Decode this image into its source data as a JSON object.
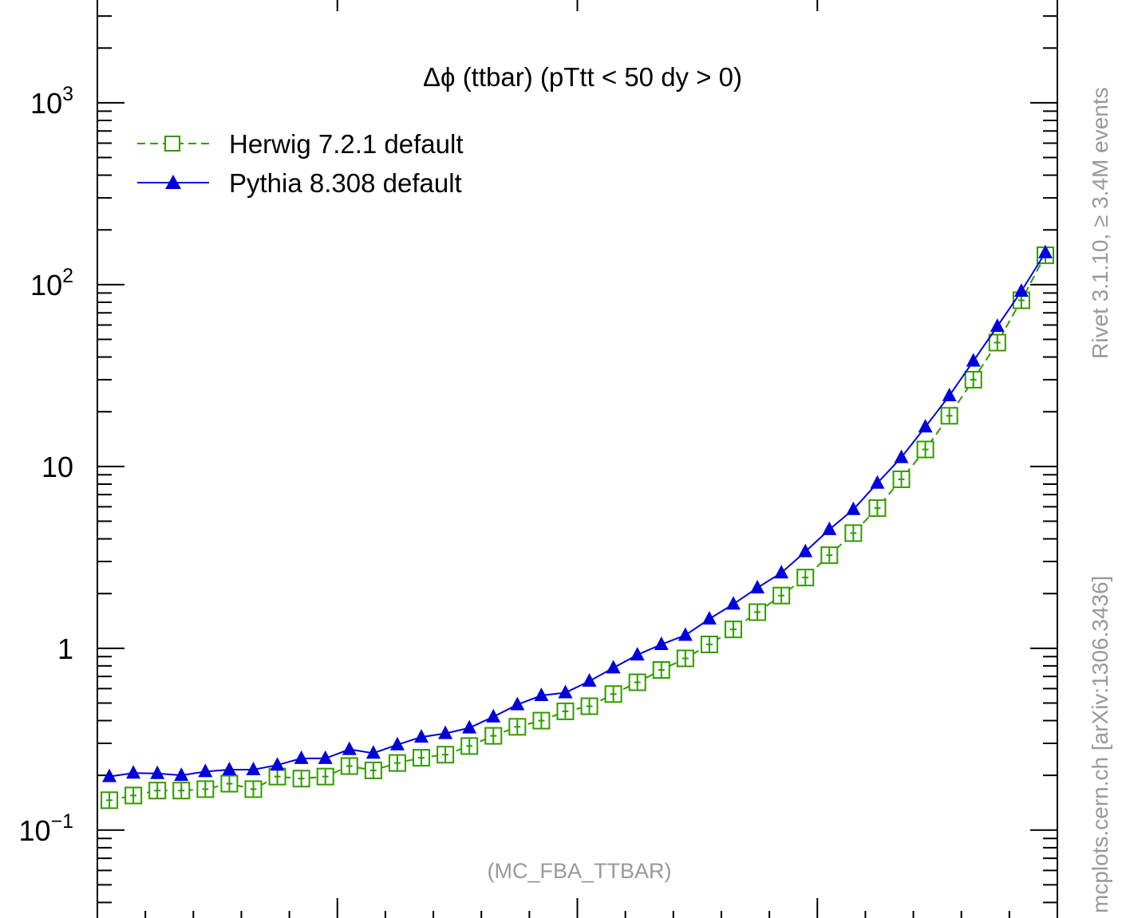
{
  "chart_data": {
    "type": "line",
    "title": "Δϕ (ttbar) (pTtt < 50 dy > 0)",
    "xlabel": "",
    "ylabel": "",
    "yscale": "log",
    "ylim": [
      0.03,
      4500
    ],
    "xlim": [
      0.0,
      1.0
    ],
    "grid": false,
    "legend_position": "top-left",
    "y_ticks": [
      {
        "value": 0.1,
        "base": "10",
        "exp": "−1"
      },
      {
        "value": 1,
        "label": "1"
      },
      {
        "value": 10,
        "label": "10"
      },
      {
        "value": 100,
        "base": "10",
        "exp": "2"
      },
      {
        "value": 1000,
        "base": "10",
        "exp": "3"
      }
    ],
    "x": [
      0.0125,
      0.0375,
      0.0625,
      0.0875,
      0.1125,
      0.1375,
      0.1625,
      0.1875,
      0.2125,
      0.2375,
      0.2625,
      0.2875,
      0.3125,
      0.3375,
      0.3625,
      0.3875,
      0.4125,
      0.4375,
      0.4625,
      0.4875,
      0.5125,
      0.5375,
      0.5625,
      0.5875,
      0.6125,
      0.6375,
      0.6625,
      0.6875,
      0.7125,
      0.7375,
      0.7625,
      0.7875,
      0.8125,
      0.8375,
      0.8625,
      0.8875,
      0.9125,
      0.9375,
      0.9625,
      0.9875
    ],
    "series": [
      {
        "name": "Herwig 7.2.1 default",
        "color": "#339900",
        "marker": "open-square",
        "line": "dashed",
        "values": [
          0.146,
          0.155,
          0.165,
          0.165,
          0.168,
          0.18,
          0.168,
          0.197,
          0.192,
          0.197,
          0.225,
          0.213,
          0.234,
          0.25,
          0.26,
          0.29,
          0.33,
          0.37,
          0.4,
          0.45,
          0.48,
          0.56,
          0.65,
          0.76,
          0.88,
          1.05,
          1.27,
          1.58,
          1.95,
          2.45,
          3.25,
          4.3,
          5.9,
          8.5,
          12.4,
          19,
          30,
          48,
          82,
          145
        ]
      },
      {
        "name": "Pythia 8.308 default",
        "color": "#0000dd",
        "marker": "filled-triangle",
        "line": "solid",
        "values": [
          0.197,
          0.206,
          0.205,
          0.2,
          0.21,
          0.215,
          0.215,
          0.228,
          0.248,
          0.248,
          0.278,
          0.265,
          0.295,
          0.325,
          0.34,
          0.365,
          0.42,
          0.49,
          0.55,
          0.57,
          0.66,
          0.78,
          0.92,
          1.05,
          1.18,
          1.45,
          1.75,
          2.15,
          2.6,
          3.4,
          4.5,
          5.8,
          8.1,
          11.2,
          16.5,
          24.5,
          38,
          59,
          92,
          150
        ]
      }
    ],
    "annotation": "(MC_FBA_TTBAR)"
  },
  "side_text": {
    "top": "Rivet 3.1.10,  ≥ 3.4M events",
    "bottom": "mcplots.cern.ch [arXiv:1306.3436]"
  }
}
